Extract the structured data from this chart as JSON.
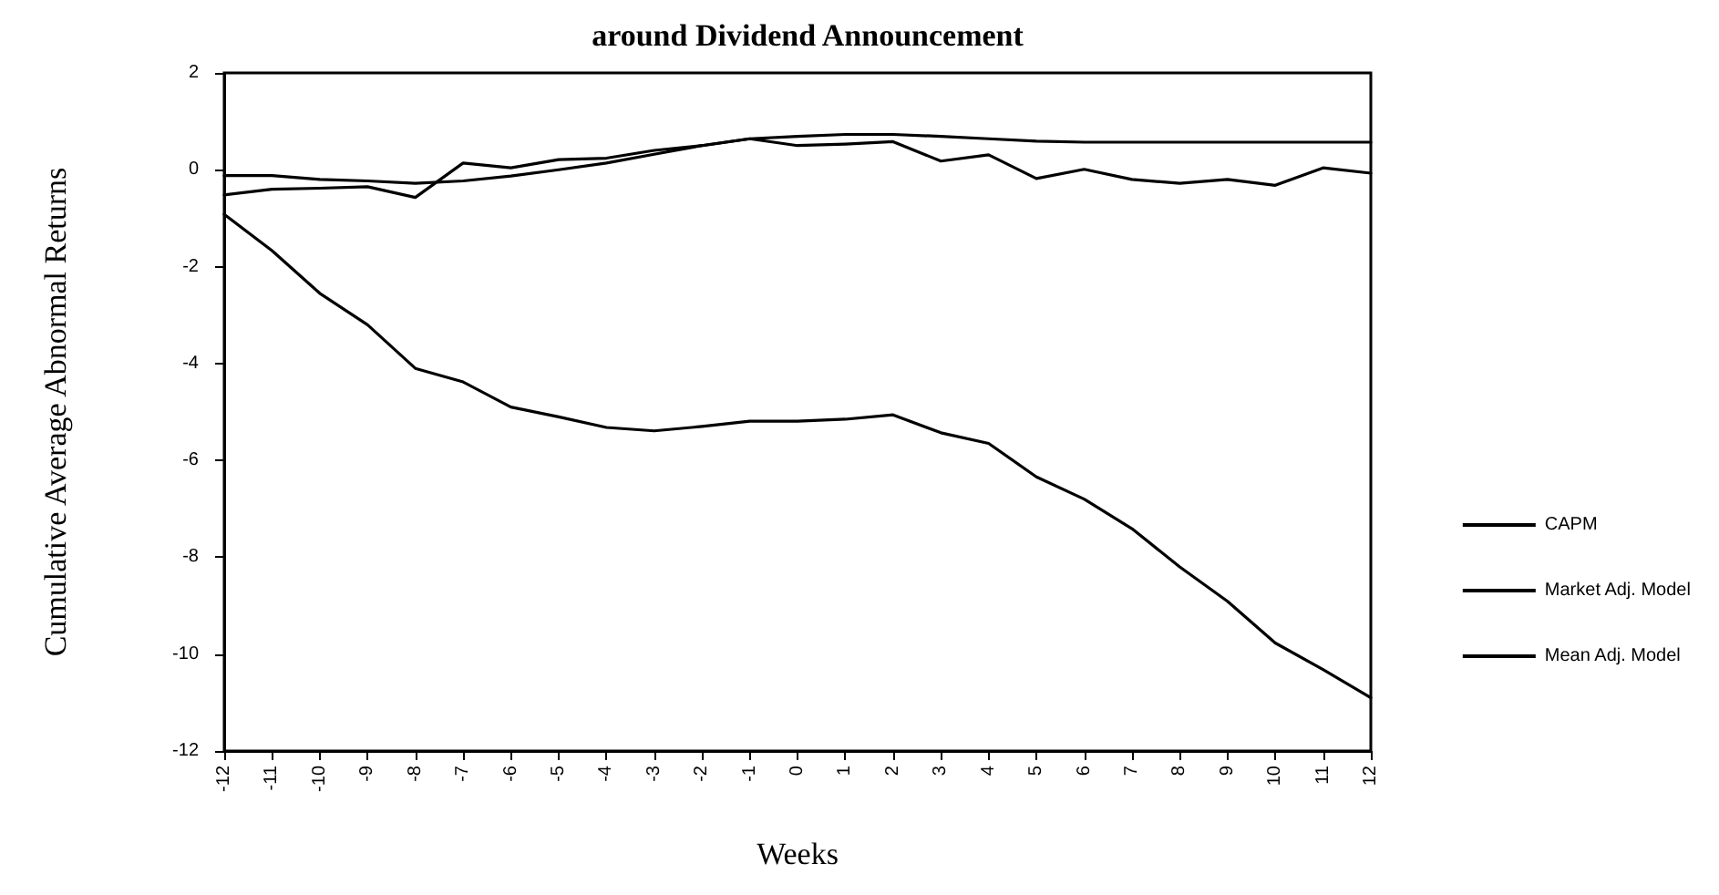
{
  "chart_data": {
    "type": "line",
    "title": "around Dividend Announcement",
    "xlabel": "Weeks",
    "ylabel": "Cumulative Average Abnormal Returns",
    "x": [
      -12,
      -11,
      -10,
      -9,
      -8,
      -7,
      -6,
      -5,
      -4,
      -3,
      -2,
      -1,
      0,
      1,
      2,
      3,
      4,
      5,
      6,
      7,
      8,
      9,
      10,
      11,
      12
    ],
    "series": [
      {
        "name": "CAPM",
        "color": "#000000",
        "values": [
          -0.12,
          -0.12,
          -0.2,
          -0.23,
          -0.28,
          -0.23,
          -0.13,
          0.0,
          0.14,
          0.32,
          0.5,
          0.64,
          0.69,
          0.73,
          0.73,
          0.69,
          0.64,
          0.59,
          0.57,
          0.57,
          0.57,
          0.57,
          0.57,
          0.57,
          0.57
        ]
      },
      {
        "name": "Market Adj. Model",
        "color": "#000000",
        "values": [
          -0.52,
          -0.4,
          -0.38,
          -0.35,
          -0.57,
          0.14,
          0.04,
          0.21,
          0.24,
          0.4,
          0.5,
          0.64,
          0.5,
          0.53,
          0.58,
          0.18,
          0.31,
          -0.18,
          0.01,
          -0.2,
          -0.28,
          -0.2,
          -0.32,
          0.04,
          -0.07
        ]
      },
      {
        "name": "Mean Adj. Model",
        "color": "#000000",
        "values": [
          -0.92,
          -1.67,
          -2.55,
          -3.2,
          -4.1,
          -4.38,
          -4.9,
          -5.1,
          -5.32,
          -5.39,
          -5.3,
          -5.19,
          -5.19,
          -5.15,
          -5.06,
          -5.43,
          -5.65,
          -6.34,
          -6.8,
          -7.41,
          -8.2,
          -8.91,
          -9.77,
          -10.32,
          -10.9
        ]
      }
    ],
    "xlim": [
      -12,
      12
    ],
    "xticks": [
      -12,
      -11,
      -10,
      -9,
      -8,
      -7,
      -6,
      -5,
      -4,
      -3,
      -2,
      -1,
      0,
      1,
      2,
      3,
      4,
      5,
      6,
      7,
      8,
      9,
      10,
      11,
      12
    ],
    "ylim": [
      -12,
      2
    ],
    "yticks": [
      -12,
      -10,
      -8,
      -6,
      -4,
      -2,
      0,
      2
    ],
    "grid": false,
    "legend": "right",
    "marker": "none",
    "line_style": "solid"
  }
}
